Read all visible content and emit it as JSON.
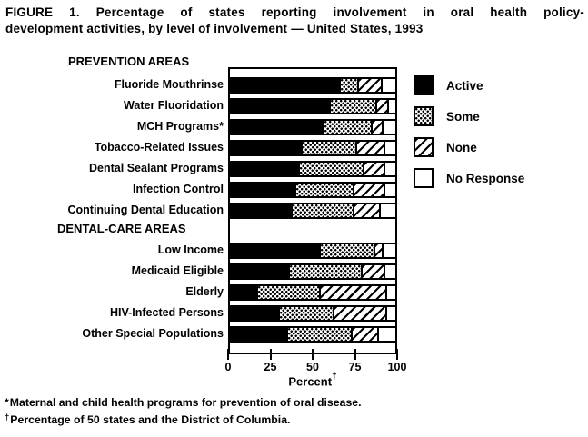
{
  "figure": {
    "title_lines": [
      "FIGURE 1. Percentage of states reporting involvement in oral health policy-",
      "development activities, by level of involvement — United States, 1993"
    ]
  },
  "chart_data": {
    "type": "bar",
    "orientation": "horizontal",
    "stacked": true,
    "title": "FIGURE 1. Percentage of states reporting involvement in oral health policy-development activities, by level of involvement — United States, 1993",
    "xlabel": "Percent",
    "xlabel_sup": "†",
    "xlim": [
      0,
      100
    ],
    "x_ticks": [
      0,
      25,
      50,
      75,
      100
    ],
    "grid": false,
    "legend_position": "right",
    "legend": [
      {
        "label": "Active",
        "pattern": "solid",
        "color": "#000000"
      },
      {
        "label": "Some",
        "pattern": "stipple",
        "color": "#000000"
      },
      {
        "label": "None",
        "pattern": "hatch",
        "color": "#000000"
      },
      {
        "label": "No Response",
        "pattern": "open",
        "color": "#ffffff"
      }
    ],
    "sections": [
      {
        "label": "PREVENTION AREAS",
        "rows": [
          {
            "category": "Fluoride Mouthrinse",
            "values": [
              66,
              11,
              14,
              9
            ]
          },
          {
            "category": "Water Fluoridation",
            "values": [
              60,
              28,
              7,
              5
            ]
          },
          {
            "category": "MCH Programs*",
            "values": [
              56,
              29,
              7,
              8
            ]
          },
          {
            "category": "Tobacco-Related Issues",
            "values": [
              43,
              33,
              17,
              7
            ]
          },
          {
            "category": "Dental Sealant Programs",
            "values": [
              41,
              39,
              13,
              7
            ]
          },
          {
            "category": "Infection Control",
            "values": [
              39,
              35,
              19,
              7
            ]
          },
          {
            "category": "Continuing Dental Education",
            "values": [
              37,
              37,
              16,
              10
            ]
          }
        ]
      },
      {
        "label": "DENTAL-CARE AREAS",
        "rows": [
          {
            "category": "Low Income",
            "values": [
              54,
              33,
              5,
              8
            ]
          },
          {
            "category": "Medicaid Eligible",
            "values": [
              35,
              44,
              14,
              7
            ]
          },
          {
            "category": "Elderly",
            "values": [
              16,
              38,
              40,
              6
            ]
          },
          {
            "category": "HIV-Infected Persons",
            "values": [
              29,
              33,
              32,
              6
            ]
          },
          {
            "category": "Other Special Populations",
            "values": [
              34,
              39,
              16,
              11
            ]
          }
        ]
      }
    ]
  },
  "footnotes": [
    {
      "marker": "*",
      "text": "Maternal and child health programs for prevention of oral disease."
    },
    {
      "marker": "†",
      "text": "Percentage of 50 states and the District of Columbia."
    }
  ],
  "colors": {
    "ink": "#000000",
    "paper": "#ffffff"
  }
}
